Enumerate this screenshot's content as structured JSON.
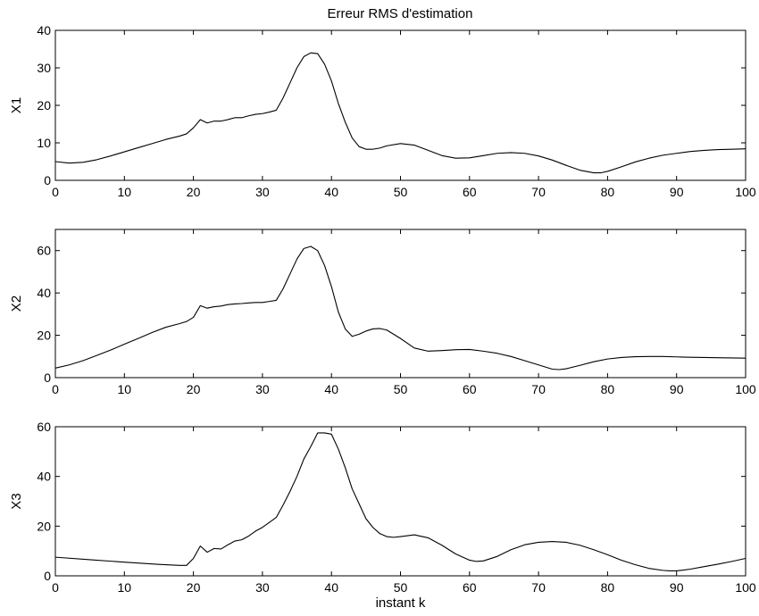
{
  "chart_data": [
    {
      "type": "line",
      "title": "Erreur RMS d'estimation",
      "xlabel": "",
      "ylabel": "X1",
      "xlim": [
        0,
        100
      ],
      "ylim": [
        0,
        40
      ],
      "xticks": [
        0,
        10,
        20,
        30,
        40,
        50,
        60,
        70,
        80,
        90,
        100
      ],
      "yticks": [
        0,
        10,
        20,
        30,
        40
      ],
      "grid": false,
      "series": [
        {
          "x": [
            0,
            2,
            4,
            6,
            8,
            10,
            12,
            14,
            16,
            18,
            19,
            20,
            21,
            22,
            23,
            24,
            25,
            26,
            27,
            28,
            29,
            30,
            31,
            32,
            33,
            34,
            35,
            36,
            37,
            38,
            39,
            40,
            41,
            42,
            43,
            44,
            45,
            46,
            47,
            48,
            50,
            52,
            54,
            56,
            58,
            60,
            62,
            64,
            66,
            68,
            70,
            72,
            74,
            76,
            78,
            79,
            80,
            82,
            84,
            86,
            88,
            90,
            92,
            94,
            96,
            98,
            100
          ],
          "y": [
            5.0,
            4.6,
            4.8,
            5.5,
            6.5,
            7.6,
            8.7,
            9.8,
            10.9,
            11.8,
            12.4,
            14.0,
            16.2,
            15.3,
            15.8,
            15.8,
            16.2,
            16.7,
            16.7,
            17.2,
            17.6,
            17.8,
            18.2,
            18.7,
            22.0,
            26.0,
            30.0,
            33.0,
            34.0,
            33.8,
            31.0,
            26.5,
            20.5,
            15.5,
            11.3,
            9.0,
            8.3,
            8.3,
            8.6,
            9.2,
            9.8,
            9.4,
            8.0,
            6.6,
            5.9,
            6.0,
            6.6,
            7.2,
            7.4,
            7.2,
            6.5,
            5.4,
            4.0,
            2.7,
            2.0,
            2.0,
            2.4,
            3.6,
            4.9,
            5.9,
            6.7,
            7.2,
            7.7,
            8.0,
            8.2,
            8.3,
            8.4
          ]
        }
      ]
    },
    {
      "type": "line",
      "title": "",
      "xlabel": "",
      "ylabel": "X2",
      "xlim": [
        0,
        100
      ],
      "ylim": [
        0,
        70
      ],
      "xticks": [
        0,
        10,
        20,
        30,
        40,
        50,
        60,
        70,
        80,
        90,
        100
      ],
      "yticks": [
        0,
        20,
        40,
        60
      ],
      "grid": false,
      "series": [
        {
          "x": [
            0,
            2,
            4,
            6,
            8,
            10,
            12,
            14,
            16,
            18,
            19,
            20,
            21,
            22,
            23,
            24,
            25,
            26,
            27,
            28,
            29,
            30,
            31,
            32,
            33,
            34,
            35,
            36,
            37,
            38,
            39,
            40,
            41,
            42,
            43,
            44,
            45,
            46,
            47,
            48,
            50,
            52,
            54,
            56,
            58,
            60,
            62,
            64,
            66,
            68,
            70,
            72,
            73,
            74,
            76,
            78,
            80,
            82,
            84,
            86,
            88,
            90,
            92,
            94,
            96,
            98,
            100
          ],
          "y": [
            4.5,
            6.0,
            8.0,
            10.5,
            13.0,
            15.8,
            18.5,
            21.3,
            23.8,
            25.5,
            26.5,
            28.5,
            34.0,
            32.8,
            33.5,
            33.8,
            34.5,
            34.8,
            35.0,
            35.3,
            35.5,
            35.5,
            36.0,
            36.5,
            42.0,
            49.0,
            56.0,
            61.0,
            62.0,
            60.0,
            53.0,
            43.0,
            31.0,
            23.0,
            19.5,
            20.5,
            22.0,
            23.0,
            23.2,
            22.5,
            18.5,
            14.0,
            12.5,
            12.8,
            13.2,
            13.3,
            12.5,
            11.5,
            10.0,
            8.0,
            6.0,
            4.0,
            3.8,
            4.2,
            5.8,
            7.5,
            8.8,
            9.5,
            9.9,
            10.0,
            10.0,
            9.8,
            9.6,
            9.5,
            9.4,
            9.3,
            9.2
          ]
        }
      ]
    },
    {
      "type": "line",
      "title": "",
      "xlabel": "instant k",
      "ylabel": "X3",
      "xlim": [
        0,
        100
      ],
      "ylim": [
        0,
        60
      ],
      "xticks": [
        0,
        10,
        20,
        30,
        40,
        50,
        60,
        70,
        80,
        90,
        100
      ],
      "yticks": [
        0,
        20,
        40,
        60
      ],
      "grid": false,
      "series": [
        {
          "x": [
            0,
            5,
            10,
            15,
            18,
            19,
            20,
            21,
            22,
            23,
            24,
            25,
            26,
            27,
            28,
            29,
            30,
            31,
            32,
            33,
            34,
            35,
            36,
            37,
            38,
            39,
            40,
            41,
            42,
            43,
            44,
            45,
            46,
            47,
            48,
            49,
            50,
            52,
            54,
            56,
            58,
            60,
            61,
            62,
            64,
            66,
            68,
            70,
            72,
            74,
            76,
            78,
            80,
            82,
            84,
            86,
            88,
            89,
            90,
            91,
            92,
            94,
            96,
            98,
            100
          ],
          "y": [
            7.5,
            6.5,
            5.5,
            4.6,
            4.2,
            4.2,
            7.0,
            12.0,
            9.5,
            11.0,
            10.8,
            12.5,
            14.0,
            14.5,
            16.0,
            18.0,
            19.5,
            21.5,
            23.5,
            28.5,
            34.0,
            40.0,
            47.0,
            52.0,
            57.5,
            57.5,
            57.0,
            51.0,
            43.5,
            35.0,
            29.0,
            23.0,
            19.5,
            17.0,
            15.8,
            15.5,
            15.8,
            16.5,
            15.3,
            12.3,
            8.8,
            6.3,
            5.8,
            6.0,
            7.8,
            10.5,
            12.5,
            13.5,
            13.8,
            13.5,
            12.3,
            10.5,
            8.5,
            6.3,
            4.5,
            3.0,
            2.2,
            2.0,
            2.0,
            2.3,
            2.7,
            3.7,
            4.7,
            5.8,
            7.0
          ]
        }
      ]
    }
  ]
}
